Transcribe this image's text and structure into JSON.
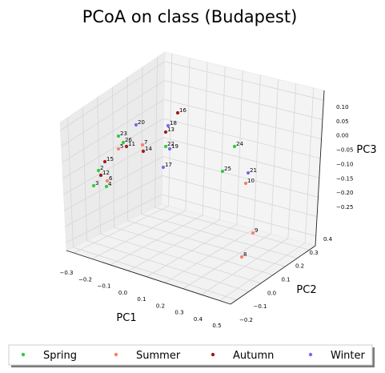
{
  "chart_data": {
    "type": "scatter",
    "projection": "3d",
    "title": "PCoA on class (Budapest)",
    "xlabel": "PC1",
    "ylabel": "PC2",
    "zlabel": "PC3",
    "x_ticks": [
      "−0.3",
      "−0.2",
      "−0.1",
      "0.0",
      "0.1",
      "0.2",
      "0.3",
      "0.4",
      "0.5"
    ],
    "y_ticks": [
      "−0.2",
      "−0.1",
      "0.0",
      "0.1",
      "0.2",
      "0.3",
      "0.4"
    ],
    "z_ticks": [
      "0.10",
      "0.05",
      "0.00",
      "−0.05",
      "−0.10",
      "−0.15",
      "−0.20",
      "−0.25"
    ],
    "grid": true,
    "legend_position": "bottom",
    "series": [
      {
        "name": "Spring",
        "color": "#2ecc40"
      },
      {
        "name": "Summer",
        "color": "#fa8060"
      },
      {
        "name": "Autumn",
        "color": "#a01c1c"
      },
      {
        "name": "Winter",
        "color": "#7b68ee"
      }
    ],
    "points": [
      {
        "label": "16",
        "season": "Autumn"
      },
      {
        "label": "20",
        "season": "Winter"
      },
      {
        "label": "18",
        "season": "Winter"
      },
      {
        "label": "13",
        "season": "Autumn"
      },
      {
        "label": "23",
        "season": "Spring"
      },
      {
        "label": "26",
        "season": "Spring"
      },
      {
        "label": "11",
        "season": "Autumn"
      },
      {
        "label": "5",
        "season": "Summer"
      },
      {
        "label": "7",
        "season": "Summer"
      },
      {
        "label": "14",
        "season": "Autumn"
      },
      {
        "label": "22",
        "season": "Spring"
      },
      {
        "label": "19",
        "season": "Winter"
      },
      {
        "label": "24",
        "season": "Spring"
      },
      {
        "label": "15",
        "season": "Autumn"
      },
      {
        "label": "17",
        "season": "Winter"
      },
      {
        "label": "2",
        "season": "Spring"
      },
      {
        "label": "12",
        "season": "Autumn"
      },
      {
        "label": "6",
        "season": "Summer"
      },
      {
        "label": "3",
        "season": "Spring"
      },
      {
        "label": "4",
        "season": "Spring"
      },
      {
        "label": "25",
        "season": "Spring"
      },
      {
        "label": "21",
        "season": "Winter"
      },
      {
        "label": "10",
        "season": "Summer"
      },
      {
        "label": "9",
        "season": "Summer"
      },
      {
        "label": "8",
        "season": "Summer"
      }
    ]
  }
}
